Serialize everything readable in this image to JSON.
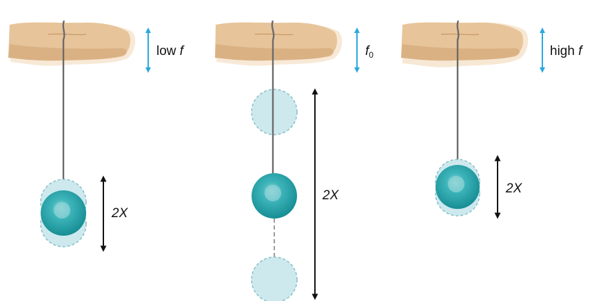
{
  "panels": [
    {
      "freq_label_main": "low ",
      "freq_label_italic": "f",
      "freq_label_sub": "",
      "amplitude_label": "2X"
    },
    {
      "freq_label_main": "",
      "freq_label_italic": "f",
      "freq_label_sub": "0",
      "amplitude_label": "2X"
    },
    {
      "freq_label_main": "high ",
      "freq_label_italic": "f",
      "freq_label_sub": "",
      "amplitude_label": "2X"
    }
  ],
  "colors": {
    "finger": "#e7c49a",
    "finger_shadow": "#d2a574",
    "finger_blur": "#f6e4cd",
    "string": "#6b6b6b",
    "ball": "#1fa3a9",
    "ball_highlight": "#8fd3d5",
    "ghost_ball_fill": "#cde9ee",
    "ghost_ball_stroke": "#86bfc6",
    "motion_arrow": "#29a8e0",
    "amplitude_arrow": "#111111"
  },
  "icons": {
    "finger": "finger-icon",
    "ball": "ball-icon",
    "motion_arrow": "vertical-double-arrow-icon"
  }
}
